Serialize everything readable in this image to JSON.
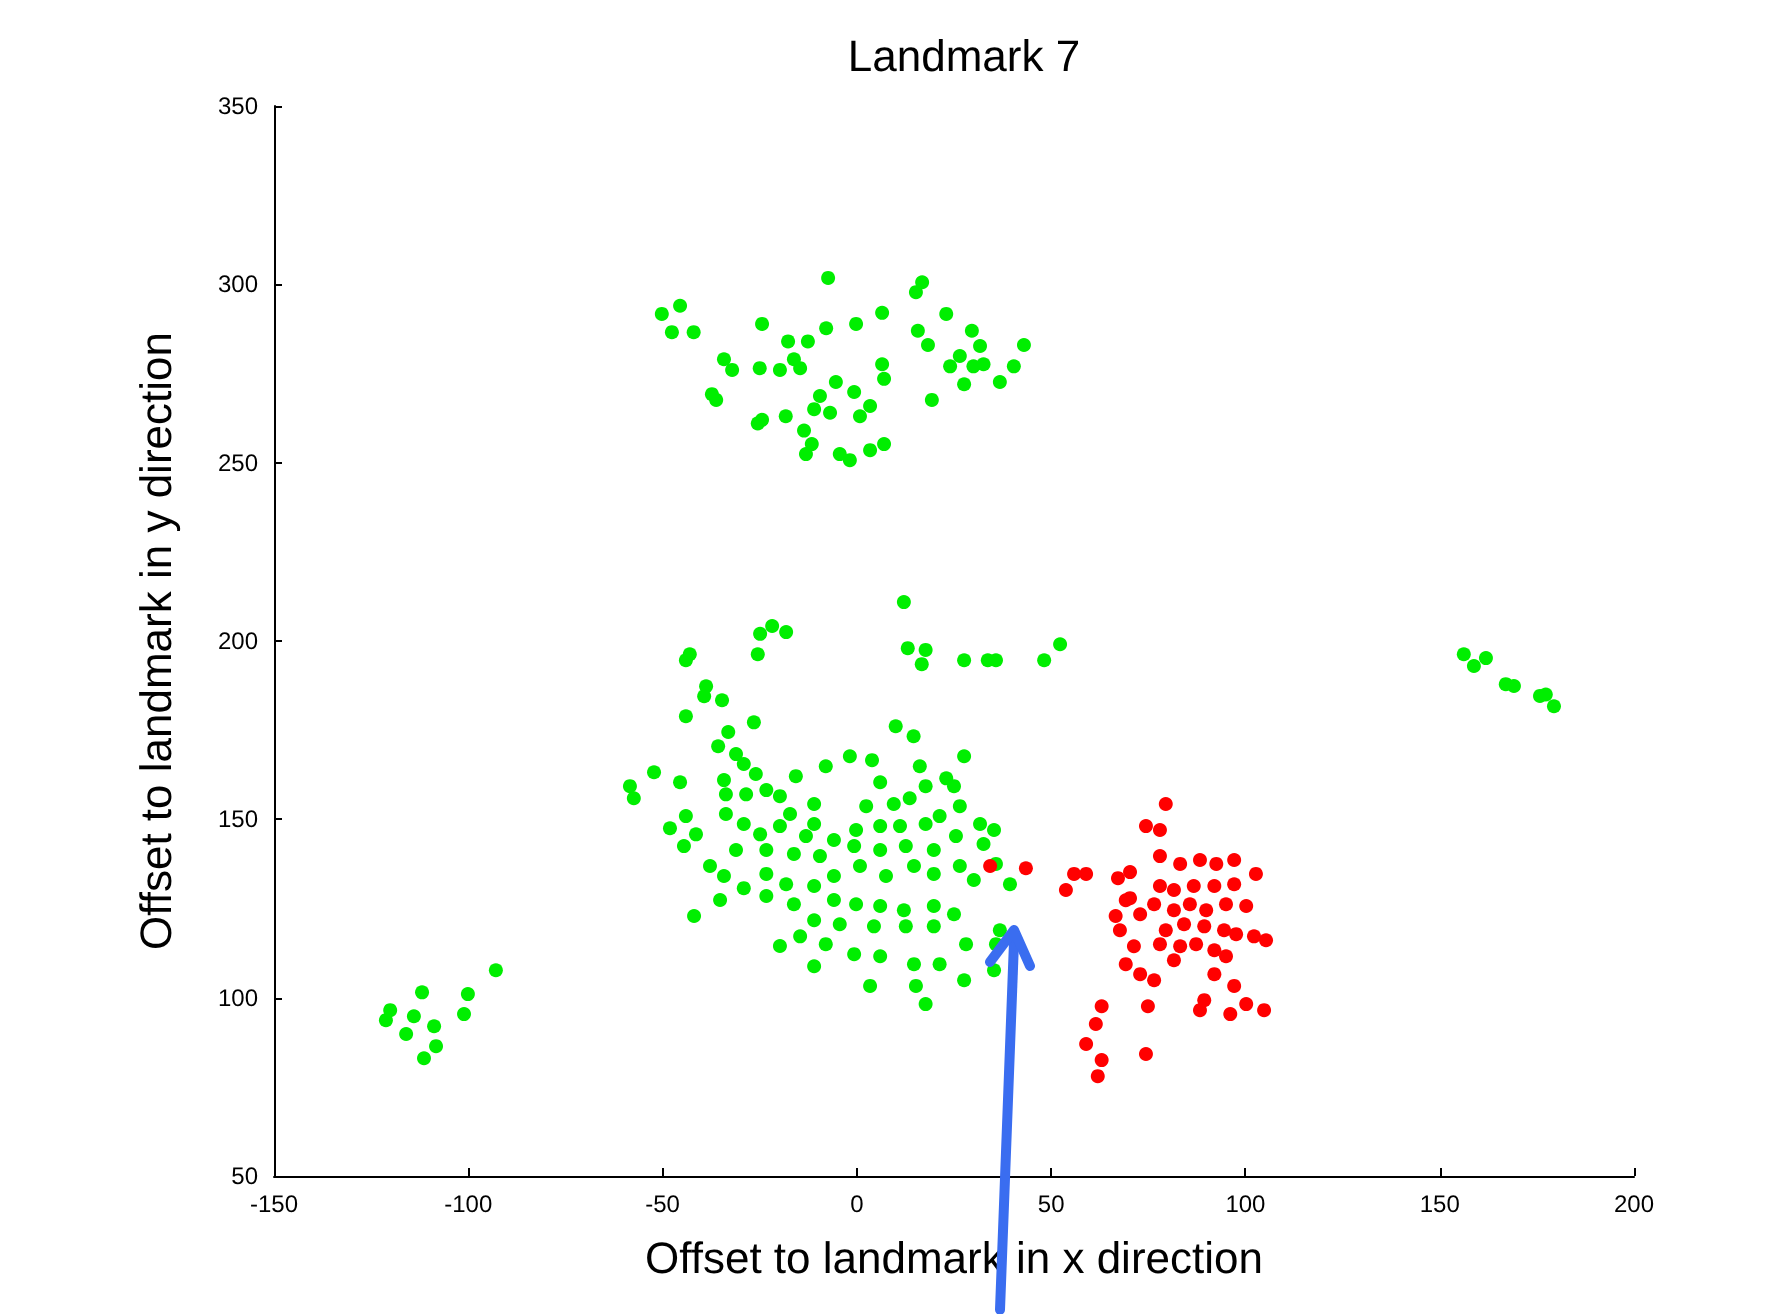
{
  "chart_data": {
    "type": "scatter",
    "title": "Landmark 7",
    "xlabel": "Offset to landmark in x direction",
    "ylabel": "Offset to landmark in y direction",
    "xlim": [
      -150,
      200
    ],
    "ylim": [
      50,
      350
    ],
    "xticks": [
      -150,
      -100,
      -50,
      0,
      50,
      100,
      150,
      200
    ],
    "yticks": [
      50,
      100,
      150,
      200,
      250,
      300,
      350
    ],
    "marker": "circle",
    "series": [
      {
        "color": "#00ee00",
        "x": [
          -50.2,
          -45.5,
          -47.6,
          -42,
          -24.4,
          -7.4,
          -0.2,
          6.5,
          16.8,
          15.2,
          23,
          15.7,
          18.3,
          29.6,
          31.7,
          26.5,
          24,
          30,
          32.6,
          40.4,
          43,
          36.8,
          27.6,
          19.3,
          6.5,
          7,
          -7.9,
          -12.6,
          -17.7,
          -16.2,
          -14.6,
          -19.8,
          -25,
          -34.2,
          -32.1,
          -37.3,
          -36.2,
          -24.4,
          -18.3,
          -5.4,
          -0.7,
          3.4,
          -9.5,
          -11,
          -6.9,
          -13.6,
          -11.6,
          -13.1,
          -4.4,
          -1.8,
          3.4,
          7,
          0.8,
          -25.5,
          -92.9,
          -111.9,
          -100.1,
          -120.1,
          -121.2,
          -114,
          -108.8,
          -116,
          -108.3,
          -111.4,
          -101.1,
          156.2,
          158.8,
          161.9,
          167,
          169.1,
          175.8,
          179.4,
          177.3,
          12.1,
          -21.8,
          -24.9,
          -18.2,
          -25.5,
          -43,
          -44,
          13.1,
          17.7,
          16.7,
          27.6,
          33.7,
          35.8,
          48.2,
          52.3,
          -38.8,
          -39.3,
          -34.7,
          -44,
          -26.5,
          -33.1,
          10,
          14.6,
          -35.7,
          -31.1,
          -29.1,
          -26,
          -15.7,
          -8,
          -1.8,
          3.9,
          16.2,
          27.6,
          -52.2,
          -58.4,
          -57.4,
          -45.5,
          -34.2,
          -33.7,
          -28.5,
          -23.3,
          -19.8,
          6,
          17.7,
          23,
          25,
          9.5,
          13.6,
          2.4,
          -11,
          26.5,
          -44,
          -48.1,
          -41.4,
          -44.5,
          -33.7,
          -29.1,
          -24.9,
          -19.8,
          -17.2,
          -11,
          -13.1,
          -5.9,
          -0.2,
          6,
          11.1,
          17.7,
          21.3,
          31.7,
          35.3,
          25.5,
          32.6,
          19.8,
          12.6,
          6,
          -0.7,
          -9.5,
          -16.2,
          -23.3,
          -31.1,
          -37.8,
          -34.2,
          -29.1,
          -35.2,
          -41.9,
          -23.3,
          -18.2,
          -23.3,
          -16.2,
          -11,
          -5.9,
          0.8,
          7.5,
          14.7,
          19.8,
          26.5,
          30.1,
          35.8,
          39.4,
          -5.9,
          -0.2,
          6,
          12.1,
          19.8,
          25,
          -11,
          -4.4,
          4.4,
          12.6,
          19.8,
          28.1,
          36.8,
          -19.8,
          -14.6,
          -8,
          -0.7,
          6,
          14.7,
          21.3,
          27.6,
          35.3,
          -11,
          3.4,
          15.2,
          17.7,
          35.8
        ],
        "values": [
          291.7,
          294,
          286.6,
          286.6,
          288.9,
          301.8,
          288.9,
          292,
          300.6,
          297.8,
          291.7,
          287,
          283,
          287,
          282.7,
          279.9,
          277,
          277,
          277.6,
          277,
          283,
          272.6,
          272,
          267.6,
          277.6,
          273.5,
          287.7,
          284,
          284,
          279,
          276.5,
          276,
          276.5,
          279,
          276,
          269.2,
          267.6,
          262,
          263,
          272.6,
          269.8,
          265.9,
          268.7,
          265,
          264,
          259,
          255.2,
          252.4,
          252.4,
          250.7,
          253.5,
          255.2,
          263,
          261,
          107.7,
          101.5,
          101,
          96.5,
          93.7,
          94.8,
          92,
          89.8,
          86.4,
          83,
          95.4,
          196.3,
          193,
          195.2,
          187.9,
          187.4,
          184.6,
          181.7,
          185,
          210.9,
          204.2,
          202,
          202.5,
          196.3,
          196.3,
          194.6,
          198,
          197.5,
          193.5,
          194.6,
          194.6,
          194.6,
          194.6,
          199.1,
          187.3,
          184.5,
          183.4,
          178.9,
          177.2,
          174.5,
          176.1,
          173.3,
          170.5,
          168.3,
          165.5,
          162.7,
          162.1,
          164.9,
          167.7,
          166.6,
          164.9,
          167.7,
          163.2,
          159.3,
          155.9,
          160.4,
          161,
          157,
          157,
          158.2,
          156.5,
          160.4,
          159.3,
          161.5,
          159.3,
          154.3,
          155.9,
          153.7,
          154.3,
          153.7,
          150.9,
          147.5,
          145.8,
          142.5,
          151.5,
          148.7,
          145.8,
          148.1,
          151.5,
          148.7,
          145.3,
          144.2,
          147,
          148.1,
          148.1,
          148.7,
          150.9,
          148.7,
          147,
          145.3,
          143.1,
          141.4,
          142.5,
          141.4,
          142.5,
          139.7,
          140.3,
          141.4,
          141.4,
          136.9,
          134.1,
          130.7,
          127.4,
          122.9,
          134.7,
          131.8,
          128.5,
          126.2,
          131.3,
          134.1,
          136.9,
          134.1,
          136.9,
          134.7,
          136.9,
          133,
          137.5,
          131.8,
          127.4,
          126.2,
          125.7,
          124.5,
          125.7,
          123.4,
          121.7,
          120.6,
          120,
          120,
          120,
          115,
          118.9,
          114.5,
          117.2,
          115,
          112.2,
          111.6,
          109.4,
          109.4,
          104.9,
          107.7,
          108.8,
          103.3,
          103.3,
          98.2,
          115
        ]
      },
      {
        "color": "#ff0000",
        "x": [
          34.3,
          43.5,
          53.8,
          55.9,
          59,
          67.2,
          70.3,
          70.3,
          72.9,
          67.7,
          71.3,
          69.2,
          72.9,
          76.5,
          63,
          61.5,
          59,
          63,
          62,
          74.9,
          74.4,
          79.5,
          74.4,
          78,
          78,
          83.2,
          88.3,
          92.5,
          97.1,
          102.7,
          97.1,
          92,
          86.7,
          81.6,
          78,
          76.5,
          81.6,
          85.7,
          89.9,
          95,
          100.2,
          105.3,
          102.2,
          97.6,
          94.5,
          89.4,
          84.2,
          79.5,
          78,
          83.2,
          87.3,
          92,
          95,
          81.6,
          92,
          97.1,
          100.2,
          104.8,
          96.1,
          89.4,
          88.3,
          69.2,
          66.6
        ],
        "values": [
          136.9,
          136.3,
          130.2,
          134.7,
          134.7,
          133.5,
          135.2,
          127.9,
          123.4,
          118.9,
          114.4,
          109.4,
          106.6,
          104.9,
          97.6,
          92.6,
          87,
          82.5,
          78,
          97.6,
          84.2,
          154.3,
          148.1,
          147,
          139.7,
          137.5,
          138.6,
          137.5,
          138.6,
          134.7,
          131.8,
          131.3,
          131.3,
          130.2,
          131.3,
          126.2,
          124.5,
          126.2,
          124.5,
          126.2,
          125.7,
          116.1,
          117.2,
          117.8,
          118.9,
          120,
          120.6,
          118.9,
          115,
          114.4,
          115,
          113.3,
          111.6,
          110.5,
          106.6,
          103.3,
          98.2,
          96.5,
          95.4,
          99.3,
          96.5,
          127.3,
          122.9
        ]
      }
    ]
  }
}
